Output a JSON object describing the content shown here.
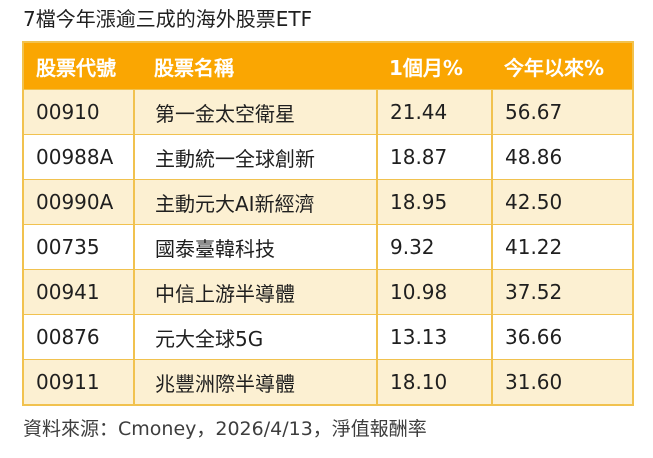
{
  "title": "7檔今年漲逾三成的海外股票ETF",
  "table": {
    "columns": [
      "股票代號",
      "股票名稱",
      "1個月%",
      "今年以來%"
    ],
    "rows": [
      {
        "code": "00910",
        "name": "第一金太空衛星",
        "one_month": "21.44",
        "ytd": "56.67"
      },
      {
        "code": "00988A",
        "name": "主動統一全球創新",
        "one_month": "18.87",
        "ytd": "48.86"
      },
      {
        "code": "00990A",
        "name": "主動元大AI新經濟",
        "one_month": "18.95",
        "ytd": "42.50"
      },
      {
        "code": "00735",
        "name": "國泰臺韓科技",
        "one_month": "9.32",
        "ytd": "41.22"
      },
      {
        "code": "00941",
        "name": "中信上游半導體",
        "one_month": "10.98",
        "ytd": "37.52"
      },
      {
        "code": "00876",
        "name": "元大全球5G",
        "one_month": "13.13",
        "ytd": "36.66"
      },
      {
        "code": "00911",
        "name": "兆豐洲際半導體",
        "one_month": "18.10",
        "ytd": "31.60"
      }
    ]
  },
  "footer": "資料來源：Cmoney，2026/4/13，淨值報酬率",
  "colors": {
    "header_bg": "#FAA602",
    "header_text": "#FFFFFF",
    "row_alt_bg": "#FCF0D2",
    "row_bg": "#FFFFFF",
    "border": "#F1C24F",
    "body_text": "#1F1F1F",
    "title_text": "#1F1F1F",
    "footer_text": "#3D3D3D"
  },
  "chart_data": {
    "type": "table",
    "title": "7檔今年漲逾三成的海外股票ETF",
    "columns": [
      "股票代號",
      "股票名稱",
      "1個月%",
      "今年以來%"
    ],
    "rows": [
      [
        "00910",
        "第一金太空衛星",
        21.44,
        56.67
      ],
      [
        "00988A",
        "主動統一全球創新",
        18.87,
        48.86
      ],
      [
        "00990A",
        "主動元大AI新經濟",
        18.95,
        42.5
      ],
      [
        "00735",
        "國泰臺韓科技",
        9.32,
        41.22
      ],
      [
        "00941",
        "中信上游半導體",
        10.98,
        37.52
      ],
      [
        "00876",
        "元大全球5G",
        13.13,
        36.66
      ],
      [
        "00911",
        "兆豐洲際半導體",
        18.1,
        31.6
      ]
    ],
    "source_note": "資料來源：Cmoney，2026/4/13，淨值報酬率"
  }
}
